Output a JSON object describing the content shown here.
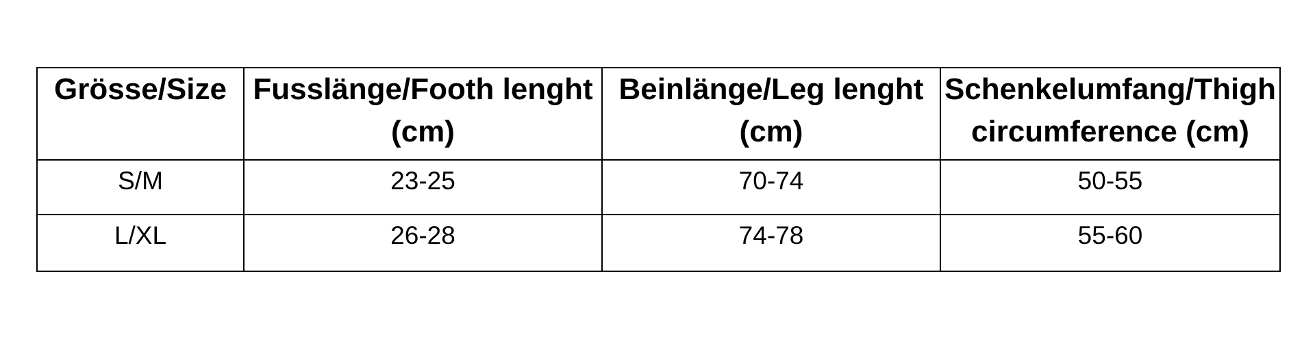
{
  "colors": {
    "background": "#ffffff",
    "border": "#000000",
    "text": "#000000"
  },
  "table": {
    "columns": [
      {
        "label": "Grösse/Size",
        "lines": [
          "Grösse/Size"
        ]
      },
      {
        "label": "Fusslänge/Footh lenght (cm)",
        "lines": [
          "Fusslänge/Footh lenght",
          "(cm)"
        ]
      },
      {
        "label": "Beinlänge/Leg lenght (cm)",
        "lines": [
          "Beinlänge/Leg lenght",
          "(cm)"
        ]
      },
      {
        "label": "Schenkelumfang/Thigh circumference (cm)",
        "lines": [
          "Schenkelumfang/Thigh",
          "circumference (cm)"
        ]
      }
    ],
    "rows": [
      {
        "cells": [
          "S/M",
          "23-25",
          "70-74",
          "50-55"
        ]
      },
      {
        "cells": [
          "L/XL",
          "26-28",
          "74-78",
          "55-60"
        ]
      }
    ]
  }
}
